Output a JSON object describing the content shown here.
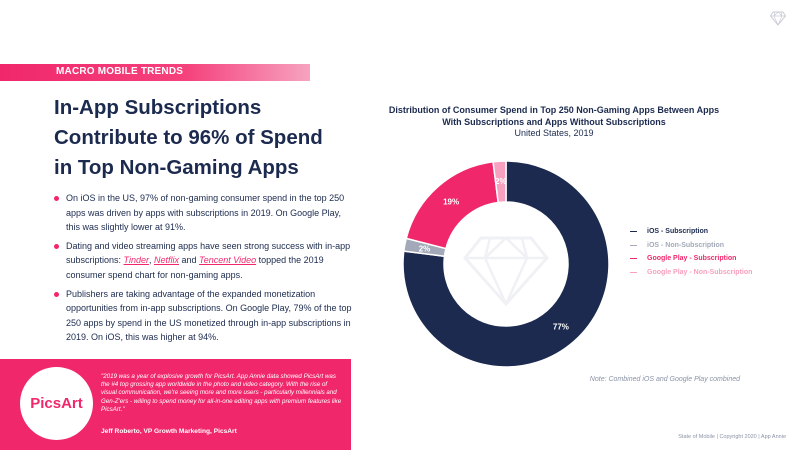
{
  "section": {
    "label": "MACRO MOBILE TRENDS"
  },
  "headline": {
    "line1": "In-App Subscriptions",
    "line2": "Contribute to 96% of Spend",
    "line3": "in Top Non-Gaming Apps"
  },
  "bullets": {
    "b1": "On iOS in the US, 97% of non-gaming consumer spend in the top 250 apps was driven by apps with subscriptions in 2019. On Google Play, this was slightly lower at 91%.",
    "b2_pre": "Dating and video streaming apps have seen strong success with in-app subscriptions: ",
    "b2_link1": "Tinder",
    "b2_sep1": ", ",
    "b2_link2": "Netflix",
    "b2_sep2": " and ",
    "b2_link3": "Tencent Video",
    "b2_post": " topped the 2019 consumer spend chart for non-gaming apps.",
    "b3": "Publishers are taking advantage of the expanded monetization opportunities from in-app subscriptions. On Google Play, 79% of the top 250 apps by spend in the US monetized through in-app subscriptions in 2019. On iOS, this was higher at 94%."
  },
  "chart_data": {
    "type": "pie",
    "title": "Distribution of Consumer Spend in Top 250 Non-Gaming Apps Between Apps With Subscriptions and Apps Without Subscriptions",
    "subtitle": "United States, 2019",
    "slices": [
      {
        "name": "iOS - Subscription",
        "value": 77,
        "label": "77%",
        "color": "#1b2a4e"
      },
      {
        "name": "iOS - Non-Subscription",
        "value": 2,
        "label": "2%",
        "color": "#a3a9b8"
      },
      {
        "name": "Google Play - Subscription",
        "value": 19,
        "label": "19%",
        "color": "#f0286b"
      },
      {
        "name": "Google Play - Non-Subscription",
        "value": 2,
        "label": "2%",
        "color": "#f7a0bf"
      }
    ],
    "legend_position": "right",
    "note": "Note: Combined iOS and Google Play combined"
  },
  "quote": {
    "logo_text": "PicsArt",
    "text": "\"2019 was a year of explosive growth for PicsArt. App Annie data showed PicsArt was the #4 top grossing app worldwide in the photo and video category. With the rise of visual communication, we're seeing more and more users - particularly millennials and Gen-Z'ers - willing to spend money for all-in-one editing apps with premium features like PicsArt.\"",
    "author": "Jeff Roberto, VP Growth Marketing, PicsArt"
  },
  "footer": {
    "text": "State of Mobile  |  Copyright 2020  |  App Annie"
  },
  "icons": {
    "brand_logo": "diamond-icon"
  }
}
